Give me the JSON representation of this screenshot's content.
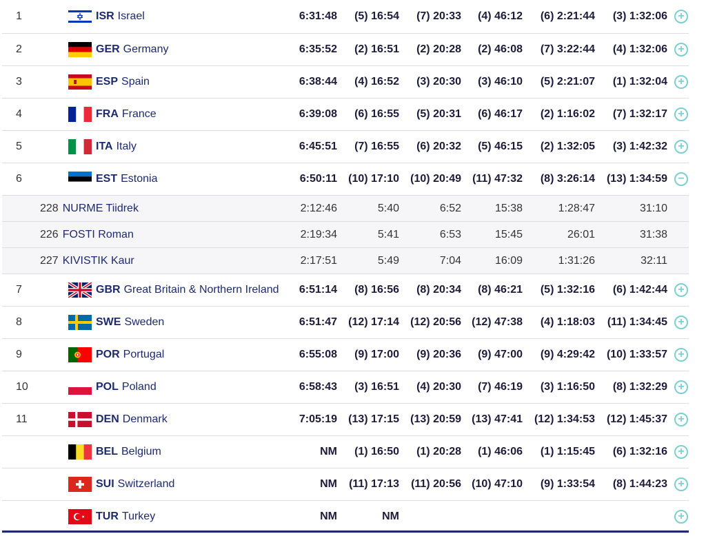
{
  "rows": [
    {
      "type": "team",
      "rank": "1",
      "flag": "isr",
      "code": "ISR",
      "name": "Israel",
      "total": "6:31:48",
      "s1": "(5) 16:54",
      "s2": "(7) 20:33",
      "s3": "(4) 46:12",
      "s4": "(6) 2:21:44",
      "s5": "(3) 1:32:06",
      "toggle": "+"
    },
    {
      "type": "team",
      "rank": "2",
      "flag": "ger",
      "code": "GER",
      "name": "Germany",
      "total": "6:35:52",
      "s1": "(2) 16:51",
      "s2": "(2) 20:28",
      "s3": "(2) 46:08",
      "s4": "(7) 3:22:44",
      "s5": "(4) 1:32:06",
      "toggle": "+"
    },
    {
      "type": "team",
      "rank": "3",
      "flag": "esp",
      "code": "ESP",
      "name": "Spain",
      "total": "6:38:44",
      "s1": "(4) 16:52",
      "s2": "(3) 20:30",
      "s3": "(3) 46:10",
      "s4": "(5) 2:21:07",
      "s5": "(1) 1:32:04",
      "toggle": "+"
    },
    {
      "type": "team",
      "rank": "4",
      "flag": "fra",
      "code": "FRA",
      "name": "France",
      "total": "6:39:08",
      "s1": "(6) 16:55",
      "s2": "(5) 20:31",
      "s3": "(6) 46:17",
      "s4": "(2) 1:16:02",
      "s5": "(7) 1:32:17",
      "toggle": "+"
    },
    {
      "type": "team",
      "rank": "5",
      "flag": "ita",
      "code": "ITA",
      "name": "Italy",
      "total": "6:45:51",
      "s1": "(7) 16:55",
      "s2": "(6) 20:32",
      "s3": "(5) 46:15",
      "s4": "(2) 1:32:05",
      "s5": "(3) 1:42:32",
      "toggle": "+"
    },
    {
      "type": "team",
      "rank": "6",
      "flag": "est",
      "code": "EST",
      "name": "Estonia",
      "total": "6:50:11",
      "s1": "(10) 17:10",
      "s2": "(10) 20:49",
      "s3": "(11) 47:32",
      "s4": "(8) 3:26:14",
      "s5": "(13) 1:34:59",
      "toggle": "−"
    },
    {
      "type": "athlete",
      "bib": "228",
      "name": "NURME Tiidrek",
      "total": "2:12:46",
      "s1": "5:40",
      "s2": "6:52",
      "s3": "15:38",
      "s4": "1:28:47",
      "s5": "31:10"
    },
    {
      "type": "athlete",
      "bib": "226",
      "name": "FOSTI Roman",
      "total": "2:19:34",
      "s1": "5:41",
      "s2": "6:53",
      "s3": "15:45",
      "s4": "26:01",
      "s5": "31:38"
    },
    {
      "type": "athlete",
      "bib": "227",
      "name": "KIVISTIK Kaur",
      "total": "2:17:51",
      "s1": "5:49",
      "s2": "7:04",
      "s3": "16:09",
      "s4": "1:31:26",
      "s5": "32:11"
    },
    {
      "type": "team",
      "rank": "7",
      "flag": "gbr",
      "code": "GBR",
      "name": "Great Britain & Northern Ireland",
      "total": "6:51:14",
      "s1": "(8) 16:56",
      "s2": "(8) 20:34",
      "s3": "(8) 46:21",
      "s4": "(5) 1:32:16",
      "s5": "(6) 1:42:44",
      "toggle": "+"
    },
    {
      "type": "team",
      "rank": "8",
      "flag": "swe",
      "code": "SWE",
      "name": "Sweden",
      "total": "6:51:47",
      "s1": "(12) 17:14",
      "s2": "(12) 20:56",
      "s3": "(12) 47:38",
      "s4": "(4) 1:18:03",
      "s5": "(11) 1:34:45",
      "toggle": "+"
    },
    {
      "type": "team",
      "rank": "9",
      "flag": "por",
      "code": "POR",
      "name": "Portugal",
      "total": "6:55:08",
      "s1": "(9) 17:00",
      "s2": "(9) 20:36",
      "s3": "(9) 47:00",
      "s4": "(9) 4:29:42",
      "s5": "(10) 1:33:57",
      "toggle": "+"
    },
    {
      "type": "team",
      "rank": "10",
      "flag": "pol",
      "code": "POL",
      "name": "Poland",
      "total": "6:58:43",
      "s1": "(3) 16:51",
      "s2": "(4) 20:30",
      "s3": "(7) 46:19",
      "s4": "(3) 1:16:50",
      "s5": "(8) 1:32:29",
      "toggle": "+"
    },
    {
      "type": "team",
      "rank": "11",
      "flag": "den",
      "code": "DEN",
      "name": "Denmark",
      "total": "7:05:19",
      "s1": "(13) 17:15",
      "s2": "(13) 20:59",
      "s3": "(13) 47:41",
      "s4": "(12) 1:34:53",
      "s5": "(12) 1:45:37",
      "toggle": "+"
    },
    {
      "type": "team",
      "rank": "",
      "flag": "bel",
      "code": "BEL",
      "name": "Belgium",
      "total": "NM",
      "s1": "(1) 16:50",
      "s2": "(1) 20:28",
      "s3": "(1) 46:06",
      "s4": "(1) 1:15:45",
      "s5": "(6) 1:32:16",
      "toggle": "+"
    },
    {
      "type": "team",
      "rank": "",
      "flag": "sui",
      "code": "SUI",
      "name": "Switzerland",
      "total": "NM",
      "s1": "(11) 17:13",
      "s2": "(11) 20:56",
      "s3": "(10) 47:10",
      "s4": "(9) 1:33:54",
      "s5": "(8) 1:44:23",
      "toggle": "+"
    },
    {
      "type": "team",
      "rank": "",
      "flag": "tur",
      "code": "TUR",
      "name": "Turkey",
      "total": "NM",
      "s1": "NM",
      "s2": "",
      "s3": "",
      "s4": "",
      "s5": "",
      "toggle": "+"
    }
  ],
  "colors": {
    "navy": "#1d2a6e",
    "toggle": "#7ccfd1",
    "divider": "#dcdce4"
  }
}
